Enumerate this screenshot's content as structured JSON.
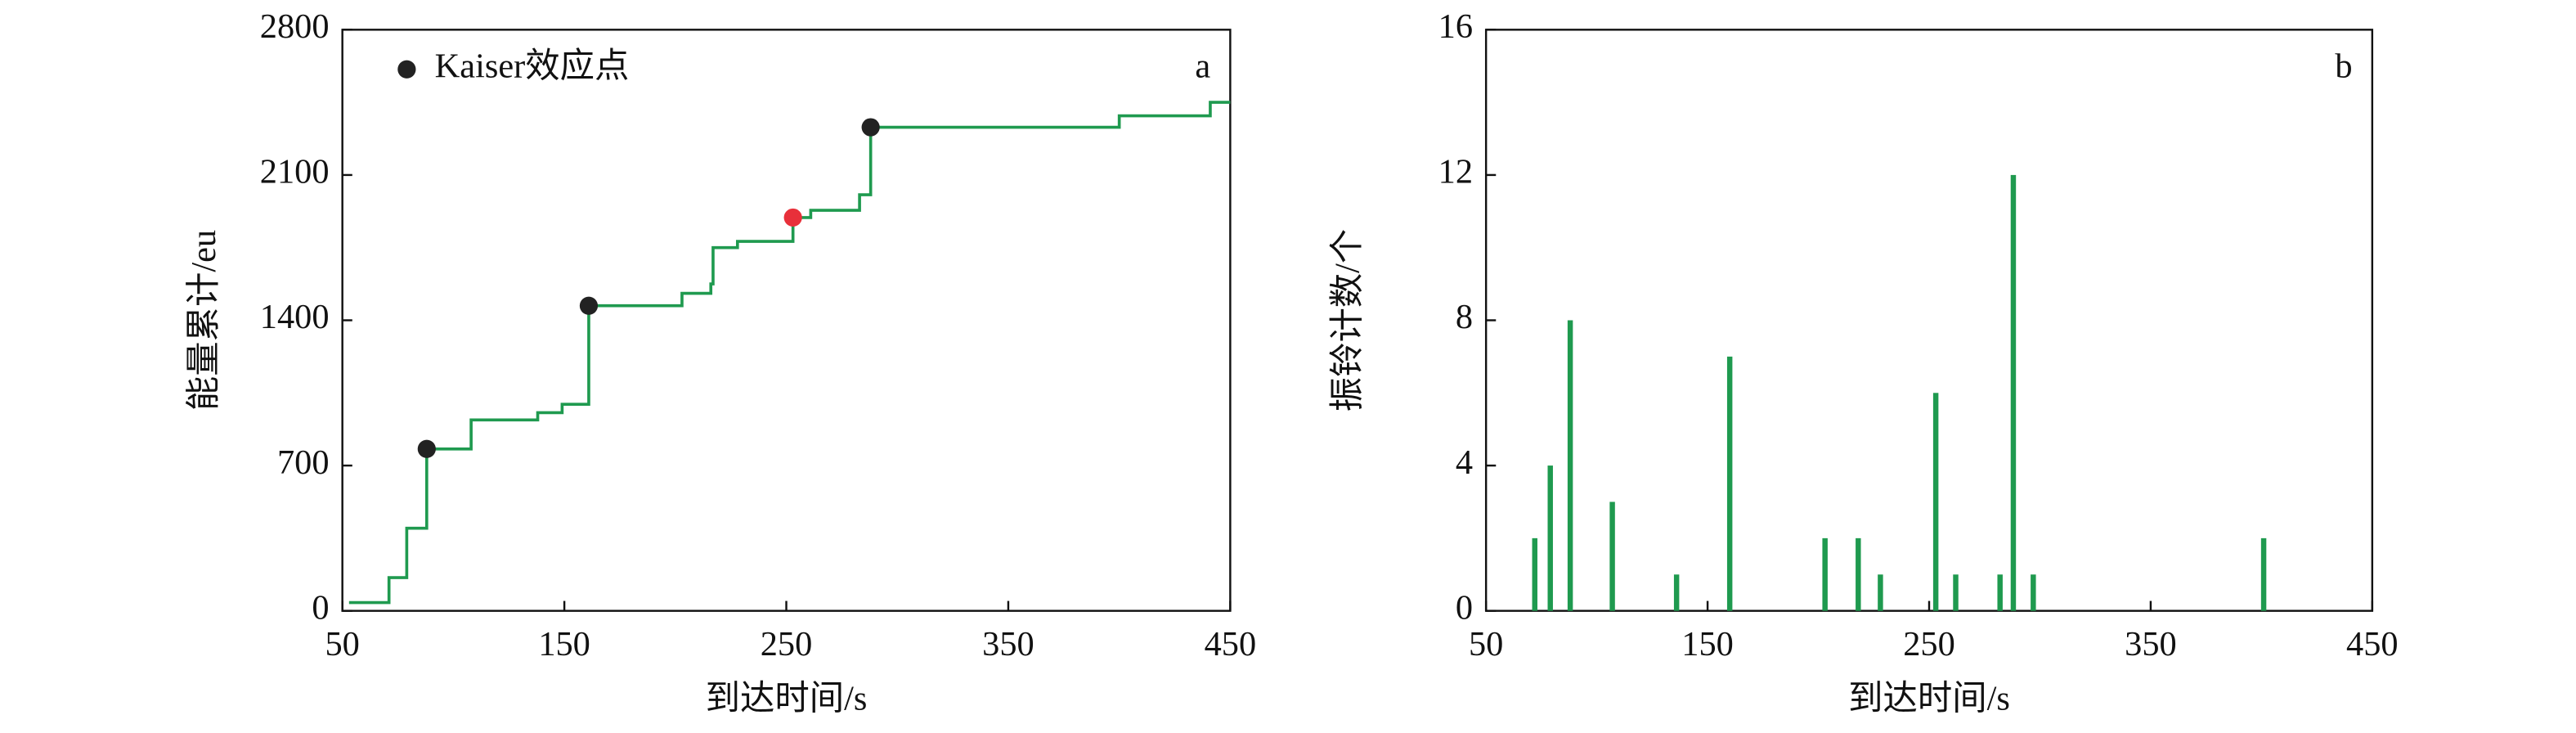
{
  "chart_data": [
    {
      "type": "step",
      "corner_label": "a",
      "xlabel": "到达时间/s",
      "ylabel": "能量累计/eu",
      "xlim": [
        50,
        450
      ],
      "xticks": [
        50,
        150,
        250,
        350,
        450
      ],
      "ylim": [
        0,
        2800
      ],
      "yticks": [
        0,
        700,
        1400,
        2100,
        2800
      ],
      "series": [
        {
          "color": "#1f9a4f",
          "x": [
            53,
            71,
            79,
            88,
            108,
            138,
            149,
            161,
            203,
            216,
            217,
            228,
            253,
            261,
            283,
            288,
            400,
            441,
            450
          ],
          "values": [
            40,
            160,
            398,
            780,
            920,
            955,
            995,
            1470,
            1530,
            1575,
            1750,
            1780,
            1895,
            1930,
            2005,
            2330,
            2385,
            2450,
            2450
          ]
        }
      ],
      "points": [
        {
          "name": "Kaiser效应点",
          "color": "#222222",
          "x": [
            88,
            161,
            288
          ],
          "values": [
            780,
            1470,
            2330
          ]
        },
        {
          "color": "#e8303a",
          "x": [
            253
          ],
          "values": [
            1895
          ]
        }
      ]
    },
    {
      "type": "bar",
      "corner_label": "b",
      "xlabel": "到达时间/s",
      "ylabel": "振铃计数/个",
      "xlim": [
        50,
        450
      ],
      "xticks": [
        50,
        150,
        250,
        350,
        450
      ],
      "ylim": [
        0,
        16
      ],
      "yticks": [
        0,
        4,
        8,
        12,
        16
      ],
      "color": "#1f9a4f",
      "x": [
        72,
        79,
        88,
        107,
        136,
        160,
        203,
        218,
        228,
        253,
        262,
        282,
        288,
        297,
        401
      ],
      "values": [
        2,
        4,
        8,
        3,
        1,
        7,
        2,
        2,
        1,
        6,
        1,
        1,
        12,
        1,
        2
      ]
    }
  ]
}
